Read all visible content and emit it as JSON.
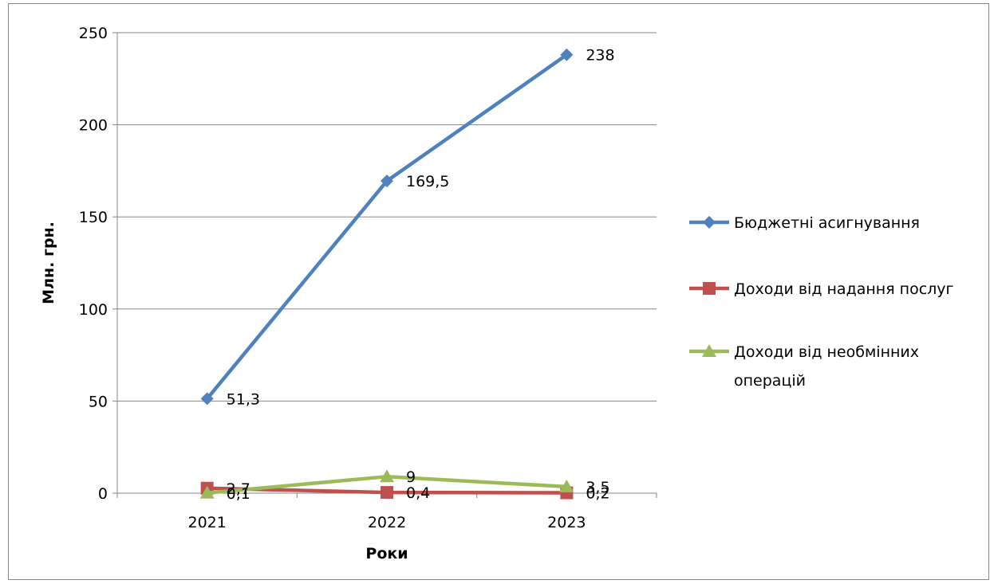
{
  "chart_data": {
    "type": "line",
    "categories": [
      "2021",
      "2022",
      "2023"
    ],
    "series": [
      {
        "name": "Бюджетні асигнування",
        "values": [
          51.3,
          169.5,
          238
        ],
        "labels": [
          "51,3",
          "169,5",
          "238"
        ],
        "color": "#4F81BD",
        "marker": "diamond"
      },
      {
        "name": "Доходи від надання послуг",
        "values": [
          2.7,
          0.4,
          0.2
        ],
        "labels": [
          "2,7",
          "0,4",
          "0,2"
        ],
        "color": "#C0504D",
        "marker": "square"
      },
      {
        "name": "Доходи від необмінних операцій",
        "values": [
          0.1,
          9,
          3.5
        ],
        "labels": [
          "0,1",
          "9",
          "3,5"
        ],
        "color": "#9BBB59",
        "marker": "triangle"
      }
    ],
    "xlabel": "Роки",
    "ylabel": "Млн. грн.",
    "ylim": [
      0,
      250
    ],
    "yticks": [
      0,
      50,
      100,
      150,
      200,
      250
    ],
    "grid": true,
    "legend": "right"
  },
  "legend_items": [
    {
      "label_lines": [
        "Бюджетні асигнування"
      ]
    },
    {
      "label_lines": [
        "Доходи від надання послуг"
      ]
    },
    {
      "label_lines": [
        "Доходи від необмінних",
        "операцій"
      ]
    }
  ]
}
